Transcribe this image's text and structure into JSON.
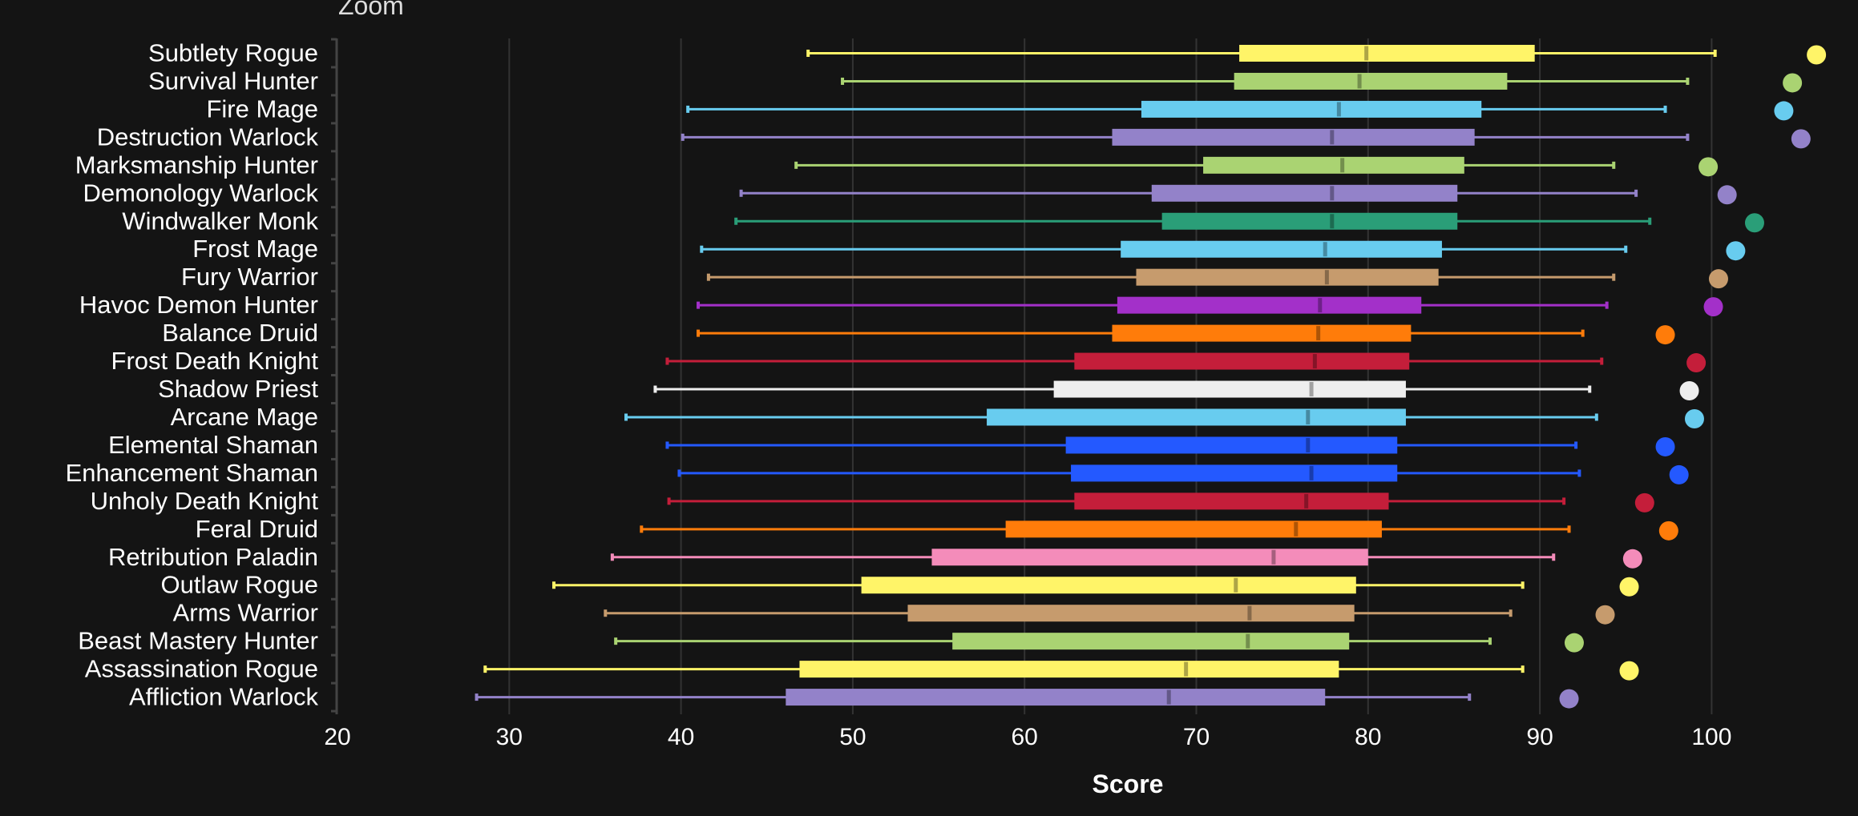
{
  "header": {
    "zoom_label": "Zoom"
  },
  "chart_data": {
    "type": "box",
    "orientation": "horizontal",
    "xlabel": "Score",
    "ylabel": "",
    "xlim": [
      20,
      108
    ],
    "xticks": [
      20,
      30,
      40,
      50,
      60,
      70,
      80,
      90,
      100
    ],
    "grid": true,
    "legend": "none",
    "series": [
      {
        "name": "Subtlety Rogue",
        "color": "#fff468",
        "min": 47.4,
        "q1": 72.5,
        "median": 79.9,
        "q3": 89.7,
        "max": 100.2,
        "top": 106.1
      },
      {
        "name": "Survival Hunter",
        "color": "#aad372",
        "min": 49.4,
        "q1": 72.2,
        "median": 79.5,
        "q3": 88.1,
        "max": 98.6,
        "top": 104.7
      },
      {
        "name": "Fire Mage",
        "color": "#68ccef",
        "min": 40.4,
        "q1": 66.8,
        "median": 78.3,
        "q3": 86.6,
        "max": 97.3,
        "top": 104.2
      },
      {
        "name": "Destruction Warlock",
        "color": "#9382c9",
        "min": 40.1,
        "q1": 65.1,
        "median": 77.9,
        "q3": 86.2,
        "max": 98.6,
        "top": 105.2
      },
      {
        "name": "Marksmanship Hunter",
        "color": "#aad372",
        "min": 46.7,
        "q1": 70.4,
        "median": 78.5,
        "q3": 85.6,
        "max": 94.3,
        "top": 99.8
      },
      {
        "name": "Demonology Warlock",
        "color": "#9382c9",
        "min": 43.5,
        "q1": 67.4,
        "median": 77.9,
        "q3": 85.2,
        "max": 95.6,
        "top": 100.9
      },
      {
        "name": "Windwalker Monk",
        "color": "#2a9e78",
        "min": 43.2,
        "q1": 68.0,
        "median": 77.9,
        "q3": 85.2,
        "max": 96.4,
        "top": 102.5
      },
      {
        "name": "Frost Mage",
        "color": "#68ccef",
        "min": 41.2,
        "q1": 65.6,
        "median": 77.5,
        "q3": 84.3,
        "max": 95.0,
        "top": 101.4
      },
      {
        "name": "Fury Warrior",
        "color": "#c69b6d",
        "min": 41.6,
        "q1": 66.5,
        "median": 77.6,
        "q3": 84.1,
        "max": 94.3,
        "top": 100.4
      },
      {
        "name": "Havoc Demon Hunter",
        "color": "#a330c9",
        "min": 41.0,
        "q1": 65.4,
        "median": 77.2,
        "q3": 83.1,
        "max": 93.9,
        "top": 100.1
      },
      {
        "name": "Balance Druid",
        "color": "#ff7c0a",
        "min": 41.0,
        "q1": 65.1,
        "median": 77.1,
        "q3": 82.5,
        "max": 92.5,
        "top": 97.3
      },
      {
        "name": "Frost Death Knight",
        "color": "#c41e3a",
        "min": 39.2,
        "q1": 62.9,
        "median": 76.9,
        "q3": 82.4,
        "max": 93.6,
        "top": 99.1
      },
      {
        "name": "Shadow Priest",
        "color": "#eeeeee",
        "min": 38.5,
        "q1": 61.7,
        "median": 76.7,
        "q3": 82.2,
        "max": 92.9,
        "top": 98.7
      },
      {
        "name": "Arcane Mage",
        "color": "#68ccef",
        "min": 36.8,
        "q1": 57.8,
        "median": 76.5,
        "q3": 82.2,
        "max": 93.3,
        "top": 99.0
      },
      {
        "name": "Elemental Shaman",
        "color": "#2459ff",
        "min": 39.2,
        "q1": 62.4,
        "median": 76.5,
        "q3": 81.7,
        "max": 92.1,
        "top": 97.3
      },
      {
        "name": "Enhancement Shaman",
        "color": "#2459ff",
        "min": 39.9,
        "q1": 62.7,
        "median": 76.7,
        "q3": 81.7,
        "max": 92.3,
        "top": 98.1
      },
      {
        "name": "Unholy Death Knight",
        "color": "#c41e3a",
        "min": 39.3,
        "q1": 62.9,
        "median": 76.4,
        "q3": 81.2,
        "max": 91.4,
        "top": 96.1
      },
      {
        "name": "Feral Druid",
        "color": "#ff7c0a",
        "min": 37.7,
        "q1": 58.9,
        "median": 75.8,
        "q3": 80.8,
        "max": 91.7,
        "top": 97.5
      },
      {
        "name": "Retribution Paladin",
        "color": "#f48cba",
        "min": 36.0,
        "q1": 54.6,
        "median": 74.5,
        "q3": 80.0,
        "max": 90.8,
        "top": 95.4
      },
      {
        "name": "Outlaw Rogue",
        "color": "#fff468",
        "min": 32.6,
        "q1": 50.5,
        "median": 72.3,
        "q3": 79.3,
        "max": 89.0,
        "top": 95.2
      },
      {
        "name": "Arms Warrior",
        "color": "#c69b6d",
        "min": 35.6,
        "q1": 53.2,
        "median": 73.1,
        "q3": 79.2,
        "max": 88.3,
        "top": 93.8
      },
      {
        "name": "Beast Mastery Hunter",
        "color": "#aad372",
        "min": 36.2,
        "q1": 55.8,
        "median": 73.0,
        "q3": 78.9,
        "max": 87.1,
        "top": 92.0
      },
      {
        "name": "Assassination Rogue",
        "color": "#fff468",
        "min": 28.6,
        "q1": 46.9,
        "median": 69.4,
        "q3": 78.3,
        "max": 89.0,
        "top": 95.2
      },
      {
        "name": "Affliction Warlock",
        "color": "#9382c9",
        "min": 28.1,
        "q1": 46.1,
        "median": 68.4,
        "q3": 77.5,
        "max": 85.9,
        "top": 91.7
      }
    ]
  }
}
